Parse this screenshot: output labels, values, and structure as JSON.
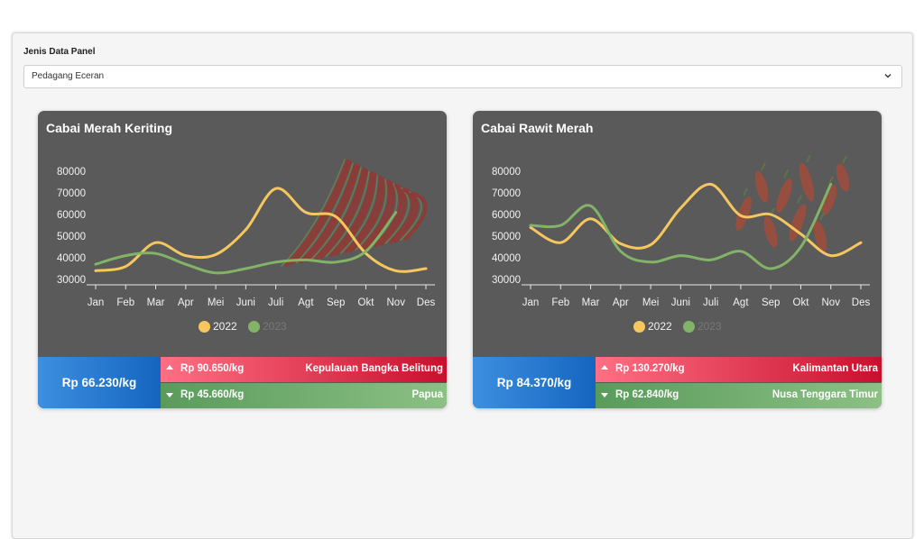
{
  "panel": {
    "label": "Jenis Data Panel",
    "select_value": "Pedagang Eceran"
  },
  "colors": {
    "series_2022": "#f6c75f",
    "series_2023": "#82b366",
    "card_bg": "#5a5a5a",
    "avg_blue": "#1e77d6",
    "max_red": "#e31837",
    "min_green": "#6ea865"
  },
  "chart_data": [
    {
      "type": "line",
      "title": "Cabai Merah Keriting",
      "categories": [
        "Jan",
        "Feb",
        "Mar",
        "Apr",
        "Mei",
        "Juni",
        "Juli",
        "Agt",
        "Sep",
        "Okt",
        "Nov",
        "Des"
      ],
      "yticks": [
        30000,
        40000,
        50000,
        60000,
        70000,
        80000
      ],
      "ylim": [
        30000,
        80000
      ],
      "series": [
        {
          "name": "2022",
          "values": [
            34000,
            36000,
            47000,
            41000,
            41500,
            53000,
            72000,
            61000,
            59000,
            42000,
            34000,
            35000
          ]
        },
        {
          "name": "2023",
          "values": [
            37000,
            41000,
            42000,
            37000,
            33000,
            35000,
            38000,
            39000,
            38000,
            43000,
            61000,
            null
          ]
        }
      ],
      "legend": "bottom",
      "grid": false,
      "image": "red-curly-chili"
    },
    {
      "type": "line",
      "title": "Cabai Rawit Merah",
      "categories": [
        "Jan",
        "Feb",
        "Mar",
        "Apr",
        "Mei",
        "Juni",
        "Juli",
        "Agt",
        "Sep",
        "Okt",
        "Nov",
        "Des"
      ],
      "yticks": [
        30000,
        40000,
        50000,
        60000,
        70000,
        80000
      ],
      "ylim": [
        30000,
        80000
      ],
      "series": [
        {
          "name": "2022",
          "values": [
            54000,
            47000,
            58000,
            46500,
            46000,
            63000,
            74000,
            59500,
            60000,
            51000,
            41000,
            47000
          ]
        },
        {
          "name": "2023",
          "values": [
            55000,
            55000,
            64000,
            43000,
            38000,
            41000,
            39000,
            43000,
            35000,
            45000,
            74000,
            null
          ]
        }
      ],
      "legend": "bottom",
      "grid": false,
      "image": "bird-eye-chili"
    }
  ],
  "cards": [
    {
      "avg": "Rp 66.230/kg",
      "max_price": "Rp 90.650/kg",
      "max_region": "Kepulauan Bangka Belitung",
      "min_price": "Rp 45.660/kg",
      "min_region": "Papua"
    },
    {
      "avg": "Rp 84.370/kg",
      "max_price": "Rp 130.270/kg",
      "max_region": "Kalimantan Utara",
      "min_price": "Rp 62.840/kg",
      "min_region": "Nusa Tenggara Timur"
    }
  ]
}
